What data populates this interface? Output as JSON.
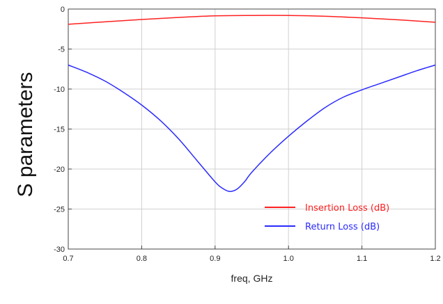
{
  "chart_data": {
    "type": "line",
    "title": "",
    "xlabel": "freq, GHz",
    "ylabel": "S parameters",
    "xlim": [
      0.7,
      1.2
    ],
    "ylim": [
      -30,
      0
    ],
    "x_ticks": [
      "0.7",
      "0.8",
      "0.9",
      "1.0",
      "1.1",
      "1.2"
    ],
    "y_ticks": [
      "0",
      "-5",
      "-10",
      "-15",
      "-20",
      "-25",
      "-30"
    ],
    "grid": true,
    "legend_position": "bottom-right",
    "series": [
      {
        "name": "Insertion Loss (dB)",
        "color": "#ff2020",
        "x": [
          0.7,
          0.75,
          0.8,
          0.85,
          0.9,
          0.95,
          1.0,
          1.05,
          1.1,
          1.15,
          1.2
        ],
        "y": [
          -1.9,
          -1.6,
          -1.3,
          -1.05,
          -0.85,
          -0.8,
          -0.8,
          -0.9,
          -1.1,
          -1.35,
          -1.65
        ]
      },
      {
        "name": "Return Loss (dB)",
        "color": "#2a2aff",
        "x": [
          0.7,
          0.725,
          0.75,
          0.775,
          0.8,
          0.825,
          0.85,
          0.875,
          0.9,
          0.91,
          0.92,
          0.93,
          0.94,
          0.95,
          0.975,
          1.0,
          1.025,
          1.05,
          1.075,
          1.1,
          1.125,
          1.15,
          1.175,
          1.2
        ],
        "y": [
          -7.0,
          -7.9,
          -9.0,
          -10.4,
          -12.0,
          -13.9,
          -16.2,
          -18.9,
          -21.6,
          -22.4,
          -22.8,
          -22.5,
          -21.6,
          -20.4,
          -18.0,
          -15.9,
          -14.0,
          -12.3,
          -11.0,
          -10.1,
          -9.3,
          -8.5,
          -7.7,
          -7.0
        ]
      }
    ]
  }
}
